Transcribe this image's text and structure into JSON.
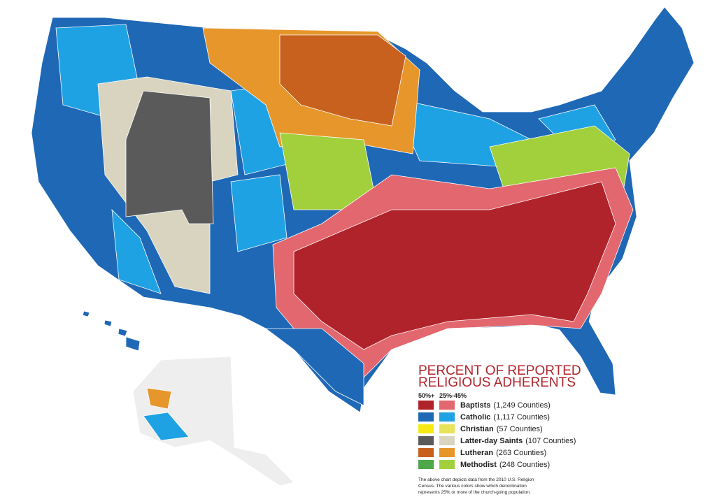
{
  "legend": {
    "title": [
      "PERCENT OF REPORTED",
      "RELIGIOUS ADHERENTS"
    ],
    "column_headers": [
      "50%+",
      "25%-45%"
    ],
    "entries": [
      {
        "name": "Baptists",
        "count": "(1,249 Counties)",
        "colors": [
          "#b0232b",
          "#e2676e"
        ]
      },
      {
        "name": "Catholic",
        "count": "(1,117 Counties)",
        "colors": [
          "#1e68b6",
          "#1fa2e4"
        ]
      },
      {
        "name": "Christian",
        "count": "(57 Counties)",
        "colors": [
          "#f7ea14",
          "#e9e35c"
        ]
      },
      {
        "name": "Latter-day Saints",
        "count": "(107 Counties)",
        "colors": [
          "#5a5a5a",
          "#d9d4c0"
        ]
      },
      {
        "name": "Lutheran",
        "count": "(263 Counties)",
        "colors": [
          "#c8611e",
          "#e6962a"
        ]
      },
      {
        "name": "Methodist",
        "count": "(248 Counties)",
        "colors": [
          "#4ea74a",
          "#a2d03c"
        ]
      }
    ],
    "footnote": [
      "The above chart depicts data from the 2010 U.S. Religion",
      "Census. The various colors show which denomination",
      "represents 25% or more of the church-going population."
    ]
  }
}
